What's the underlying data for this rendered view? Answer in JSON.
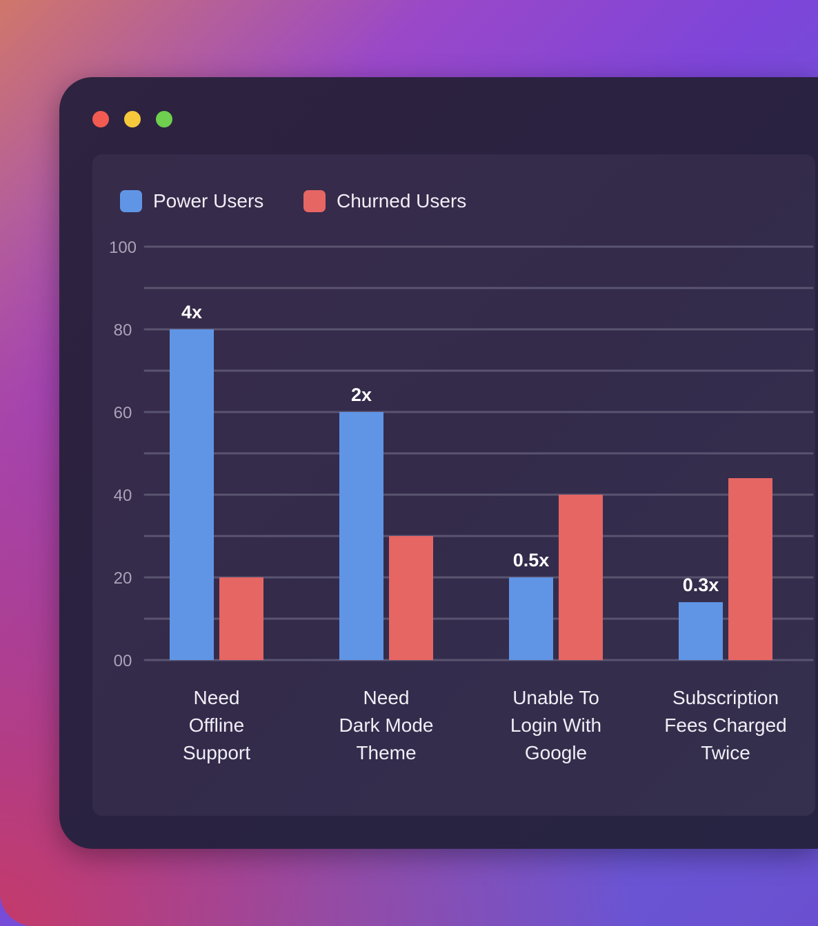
{
  "window": {
    "controls": [
      "close",
      "minimize",
      "maximize"
    ],
    "control_colors": [
      "#f25b51",
      "#f6c93c",
      "#6fcf4f"
    ]
  },
  "chart_data": {
    "type": "bar",
    "categories": [
      [
        "Need",
        "Offline",
        "Support"
      ],
      [
        "Need",
        "Dark Mode",
        "Theme"
      ],
      [
        "Unable To",
        "Login With",
        "Google"
      ],
      [
        "Subscription",
        "Fees Charged",
        "Twice"
      ]
    ],
    "series": [
      {
        "name": "Power Users",
        "color": "#6095e6",
        "values": [
          80,
          60,
          20,
          14
        ]
      },
      {
        "name": "Churned Users",
        "color": "#e66664",
        "values": [
          20,
          30,
          40,
          44
        ]
      }
    ],
    "data_labels": [
      "4x",
      "2x",
      "0.5x",
      "0.3x"
    ],
    "ylim": [
      0,
      100
    ],
    "yticks": [
      0,
      20,
      40,
      60,
      80,
      100
    ],
    "ytick_labels": [
      "00",
      "20",
      "40",
      "60",
      "80",
      "100"
    ],
    "grid": true,
    "legend": "top-left",
    "title": "",
    "xlabel": "",
    "ylabel": ""
  }
}
